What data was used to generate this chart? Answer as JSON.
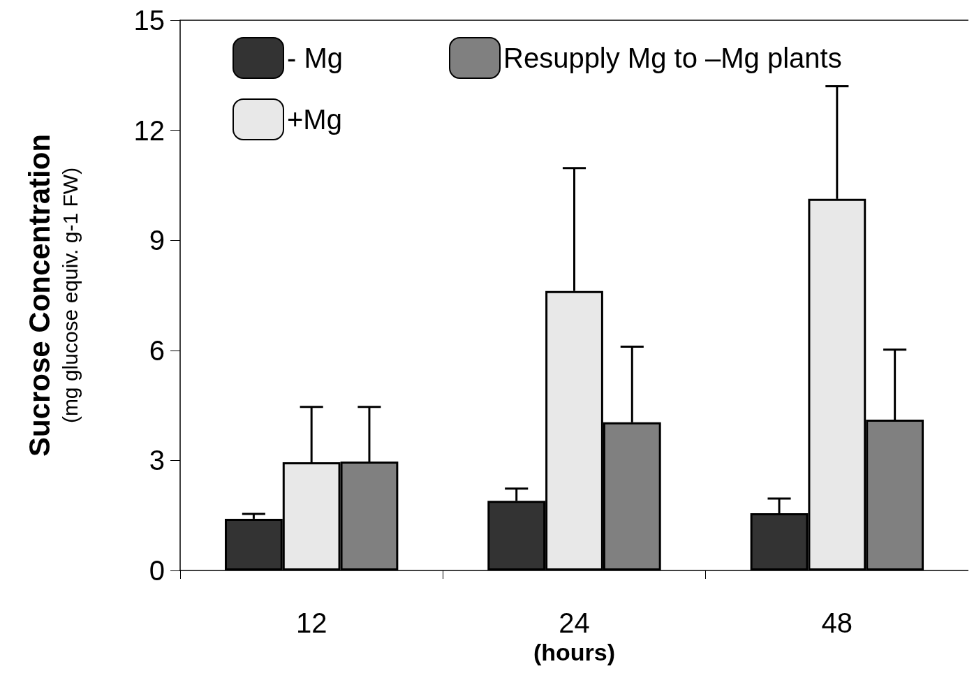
{
  "chart_data": {
    "type": "bar",
    "ylabel": "Sucrose Concentration\n(mg glucose equiv. g-1 FW)",
    "xlabel": "(hours)",
    "categories": [
      "12",
      "24",
      "48"
    ],
    "series": [
      {
        "name": "- Mg",
        "color": "#333333",
        "values": [
          1.41,
          1.9,
          1.56
        ],
        "errors": [
          [
            1.41,
            1.54
          ],
          [
            1.9,
            2.23
          ],
          [
            1.56,
            1.96
          ]
        ]
      },
      {
        "name": "+Mg",
        "color": "#e8e8e8",
        "values": [
          2.95,
          7.62,
          10.13
        ],
        "errors": [
          [
            2.95,
            4.46
          ],
          [
            7.62,
            10.97
          ],
          [
            10.13,
            13.2
          ]
        ]
      },
      {
        "name": "Resupply Mg to –Mg plants",
        "color": "#808080",
        "values": [
          2.97,
          4.04,
          4.11
        ],
        "errors": [
          [
            2.97,
            4.46
          ],
          [
            4.04,
            6.1
          ],
          [
            4.11,
            6.02
          ]
        ]
      }
    ],
    "ylim": [
      0,
      15
    ],
    "yticks": [
      0,
      3,
      6,
      9,
      12,
      15
    ],
    "grid": false,
    "legend": "top left"
  }
}
